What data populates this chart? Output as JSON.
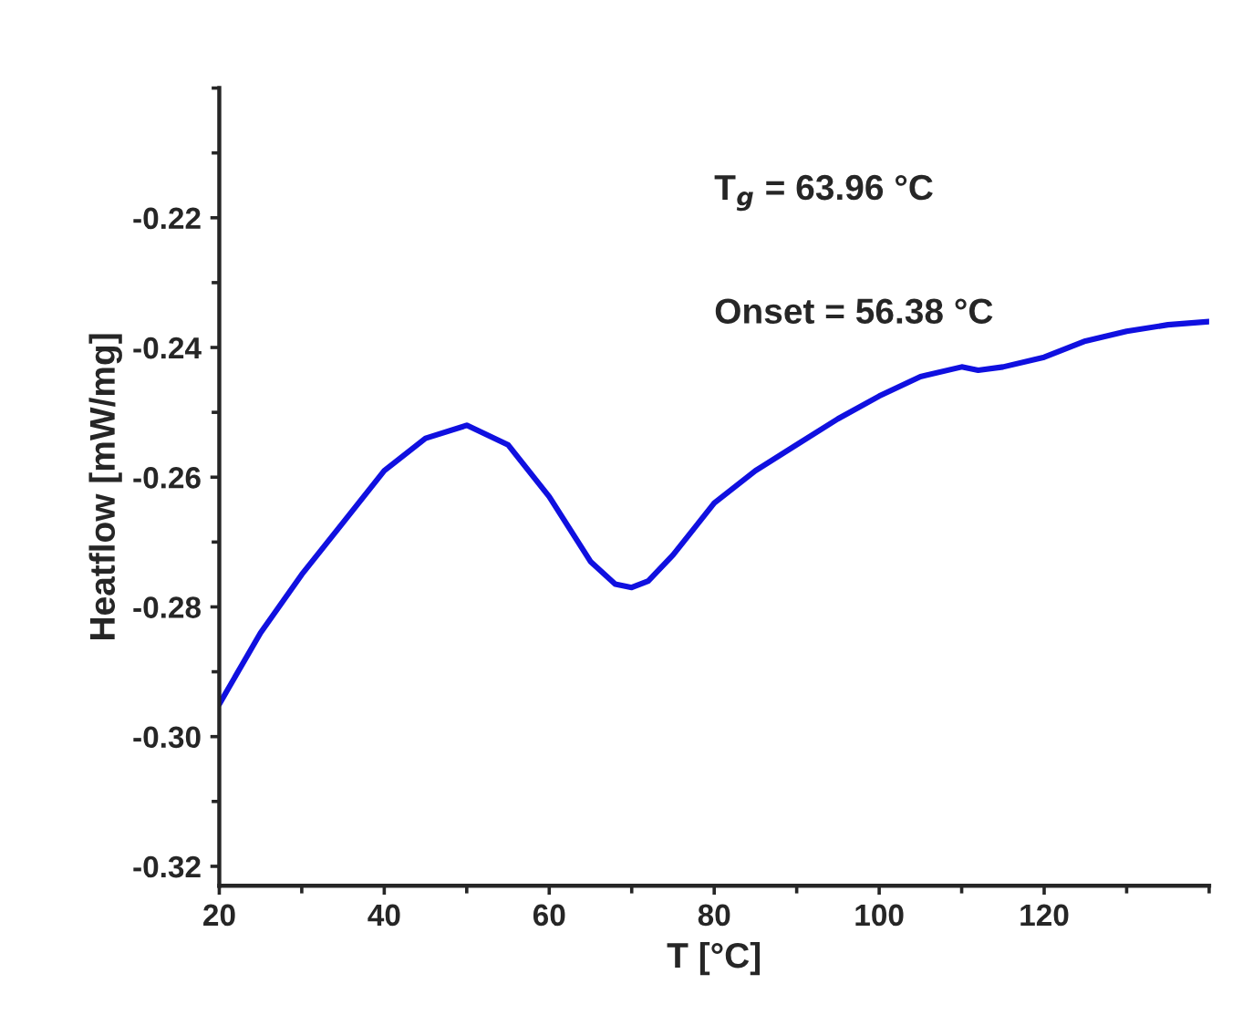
{
  "chart_data": {
    "type": "line",
    "xlabel": "T [°C]",
    "ylabel": "Heatflow [mW/mg]",
    "annotations": [
      "T$_{g}$ = 63.96 °C",
      "Onset = 56.38 °C"
    ],
    "x": [
      20,
      25,
      30,
      35,
      40,
      45,
      50,
      55,
      60,
      65,
      68,
      70,
      72,
      75,
      80,
      85,
      90,
      95,
      100,
      105,
      110,
      112,
      115,
      120,
      125,
      130,
      135,
      140
    ],
    "series": [
      {
        "color": "#1010e0",
        "values": [
          -0.295,
          -0.284,
          -0.275,
          -0.267,
          -0.259,
          -0.254,
          -0.252,
          -0.255,
          -0.263,
          -0.273,
          -0.2765,
          -0.277,
          -0.276,
          -0.272,
          -0.264,
          -0.259,
          -0.255,
          -0.251,
          -0.2475,
          -0.2445,
          -0.243,
          -0.2435,
          -0.243,
          -0.2415,
          -0.239,
          -0.2375,
          -0.2365,
          -0.236
        ]
      }
    ],
    "xlim": [
      20,
      140
    ],
    "xticks": [
      20,
      40,
      60,
      80,
      100,
      120
    ],
    "ylim": [
      -0.323,
      -0.2
    ],
    "yticks": [
      {
        "value": -0.22,
        "label": "-0.22"
      },
      {
        "value": -0.24,
        "label": "-0.24"
      },
      {
        "value": -0.26,
        "label": "-0.26"
      },
      {
        "value": -0.28,
        "label": "-0.28"
      },
      {
        "value": -0.3,
        "label": "-0.30"
      },
      {
        "value": -0.32,
        "label": "-0.32"
      }
    ],
    "grid": false,
    "legend": false
  }
}
